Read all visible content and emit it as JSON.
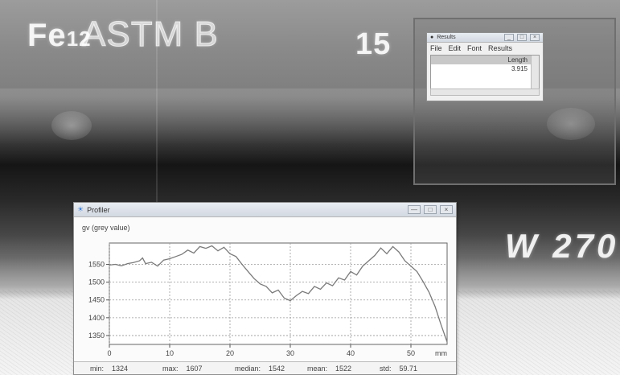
{
  "markers": {
    "fe": "Fe",
    "fraction": "12",
    "astm": "ASTM B",
    "num": "15",
    "w270": "W 270"
  },
  "results_window": {
    "title": "Results",
    "menu": [
      "File",
      "Edit",
      "Font",
      "Results"
    ],
    "column_header": "Length",
    "value": "3.915"
  },
  "profiler_window": {
    "title": "Profiler",
    "y_axis_label": "gv (grey value)",
    "x_unit": "mm",
    "stats": [
      {
        "label": "min:",
        "value": "1324"
      },
      {
        "label": "max:",
        "value": "1607"
      },
      {
        "label": "median:",
        "value": "1542"
      },
      {
        "label": "mean:",
        "value": "1522"
      },
      {
        "label": "std:",
        "value": "59.71"
      }
    ]
  },
  "chart_data": {
    "type": "line",
    "xlabel": "mm",
    "ylabel": "gv (grey value)",
    "xlim": [
      0,
      56
    ],
    "ylim": [
      1325,
      1610
    ],
    "xticks": [
      0,
      10,
      20,
      30,
      40,
      50
    ],
    "yticks": [
      1350,
      1400,
      1450,
      1500,
      1550
    ],
    "grid": true,
    "series": [
      {
        "x": [
          0,
          1,
          2,
          3,
          4,
          5,
          5.5,
          6,
          7,
          8,
          9,
          10,
          11,
          12,
          13,
          14,
          15,
          16,
          17,
          18,
          19,
          20,
          21,
          22,
          23,
          24,
          25,
          26,
          27,
          28,
          29,
          30,
          31,
          32,
          33,
          34,
          35,
          36,
          37,
          38,
          39,
          40,
          41,
          42,
          43,
          44,
          45,
          46,
          47,
          48,
          49,
          50,
          51,
          52,
          53,
          54,
          55,
          56
        ],
        "y": [
          1548,
          1550,
          1546,
          1552,
          1555,
          1560,
          1568,
          1552,
          1556,
          1545,
          1562,
          1566,
          1572,
          1578,
          1590,
          1582,
          1600,
          1595,
          1602,
          1588,
          1598,
          1580,
          1572,
          1550,
          1530,
          1510,
          1495,
          1488,
          1470,
          1478,
          1455,
          1448,
          1462,
          1474,
          1468,
          1488,
          1480,
          1498,
          1490,
          1512,
          1506,
          1530,
          1520,
          1545,
          1560,
          1575,
          1596,
          1580,
          1600,
          1585,
          1560,
          1545,
          1530,
          1502,
          1472,
          1432,
          1380,
          1332
        ]
      }
    ]
  }
}
